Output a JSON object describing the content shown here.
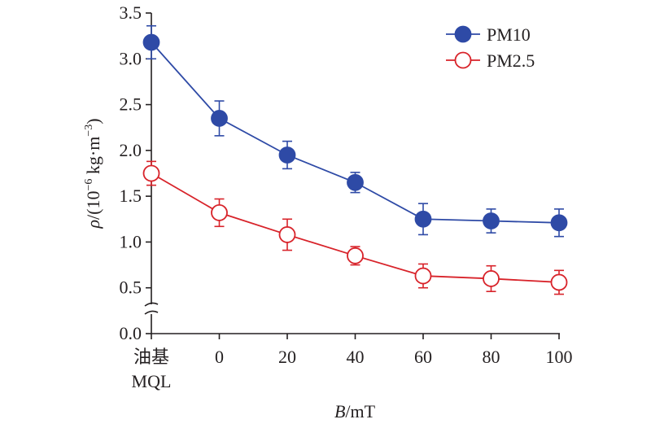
{
  "chart_data": {
    "type": "line",
    "categories": [
      "油基\nMQL",
      "0",
      "20",
      "40",
      "60",
      "80",
      "100"
    ],
    "xlabel": {
      "italic": "B",
      "rest": "/mT"
    },
    "ylabel": {
      "italic": "ρ",
      "rest": "/(10",
      "sup1": "−6",
      "mid": " kg·m",
      "sup2": "−3",
      "end": ")"
    },
    "ylim": [
      0,
      3.5
    ],
    "yticks": [
      "0.0",
      "0.5",
      "1.0",
      "1.5",
      "2.0",
      "2.5",
      "3.0",
      "3.5"
    ],
    "axis_break": true,
    "legend_position": "top-right",
    "series": [
      {
        "name": "PM10",
        "marker": "filled-circle",
        "color": "#2e4aa6",
        "values": [
          3.18,
          2.35,
          1.95,
          1.65,
          1.25,
          1.23,
          1.21
        ],
        "errors": [
          0.18,
          0.19,
          0.15,
          0.11,
          0.17,
          0.13,
          0.15
        ]
      },
      {
        "name": "PM2.5",
        "marker": "open-circle",
        "color": "#d8232a",
        "values": [
          1.75,
          1.32,
          1.08,
          0.85,
          0.63,
          0.6,
          0.56
        ],
        "errors": [
          0.13,
          0.15,
          0.17,
          0.1,
          0.13,
          0.14,
          0.13
        ]
      }
    ]
  }
}
